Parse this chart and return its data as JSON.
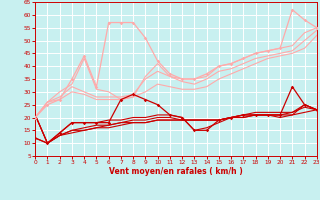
{
  "xlabel": "Vent moyen/en rafales ( km/h )",
  "xlim": [
    0,
    23
  ],
  "ylim": [
    5,
    65
  ],
  "yticks": [
    5,
    10,
    15,
    20,
    25,
    30,
    35,
    40,
    45,
    50,
    55,
    60,
    65
  ],
  "xticks": [
    0,
    1,
    2,
    3,
    4,
    5,
    6,
    7,
    8,
    9,
    10,
    11,
    12,
    13,
    14,
    15,
    16,
    17,
    18,
    19,
    20,
    21,
    22,
    23
  ],
  "bg_color": "#c8f0f0",
  "grid_color": "#ffffff",
  "series": [
    {
      "x": [
        0,
        1,
        2,
        3,
        4,
        5,
        6,
        7,
        8,
        9,
        10,
        11,
        12,
        13,
        14,
        15,
        16,
        17,
        18,
        19,
        20,
        21,
        22,
        23
      ],
      "y": [
        12,
        10,
        14,
        18,
        18,
        18,
        18,
        27,
        29,
        27,
        25,
        21,
        20,
        15,
        15,
        19,
        20,
        21,
        21,
        21,
        21,
        32,
        25,
        23
      ],
      "color": "#cc0000",
      "lw": 0.9,
      "marker": "D",
      "ms": 1.8,
      "alpha": 1.0,
      "zorder": 5
    },
    {
      "x": [
        0,
        1,
        2,
        3,
        4,
        5,
        6,
        7,
        8,
        9,
        10,
        11,
        12,
        13,
        14,
        15,
        16,
        17,
        18,
        19,
        20,
        21,
        22,
        23
      ],
      "y": [
        21,
        10,
        14,
        18,
        18,
        18,
        19,
        19,
        20,
        20,
        21,
        21,
        20,
        15,
        16,
        18,
        20,
        21,
        21,
        21,
        21,
        22,
        25,
        23
      ],
      "color": "#cc0000",
      "lw": 0.8,
      "marker": null,
      "ms": 0,
      "alpha": 1.0,
      "zorder": 4
    },
    {
      "x": [
        0,
        1,
        2,
        3,
        4,
        5,
        6,
        7,
        8,
        9,
        10,
        11,
        12,
        13,
        14,
        15,
        16,
        17,
        18,
        19,
        20,
        21,
        22,
        23
      ],
      "y": [
        21,
        10,
        13,
        15,
        16,
        17,
        17,
        18,
        19,
        19,
        20,
        20,
        19,
        19,
        19,
        19,
        20,
        21,
        22,
        22,
        22,
        22,
        24,
        23
      ],
      "color": "#cc0000",
      "lw": 0.8,
      "marker": null,
      "ms": 0,
      "alpha": 1.0,
      "zorder": 4
    },
    {
      "x": [
        0,
        1,
        2,
        3,
        4,
        5,
        6,
        7,
        8,
        9,
        10,
        11,
        12,
        13,
        14,
        15,
        16,
        17,
        18,
        19,
        20,
        21,
        22,
        23
      ],
      "y": [
        12,
        10,
        13,
        15,
        15,
        16,
        17,
        18,
        18,
        18,
        19,
        19,
        19,
        19,
        19,
        19,
        20,
        20,
        21,
        21,
        21,
        21,
        22,
        23
      ],
      "color": "#cc0000",
      "lw": 0.8,
      "marker": null,
      "ms": 0,
      "alpha": 1.0,
      "zorder": 4
    },
    {
      "x": [
        0,
        1,
        2,
        3,
        4,
        5,
        6,
        7,
        8,
        9,
        10,
        11,
        12,
        13,
        14,
        15,
        16,
        17,
        18,
        19,
        20,
        21,
        22,
        23
      ],
      "y": [
        21,
        10,
        13,
        14,
        15,
        16,
        16,
        17,
        18,
        18,
        19,
        19,
        19,
        19,
        19,
        19,
        20,
        20,
        21,
        21,
        20,
        21,
        25,
        23
      ],
      "color": "#cc0000",
      "lw": 0.8,
      "marker": null,
      "ms": 0,
      "alpha": 1.0,
      "zorder": 4
    },
    {
      "x": [
        0,
        1,
        2,
        3,
        4,
        5,
        6,
        7,
        8,
        9,
        10,
        11,
        12,
        13,
        14,
        15,
        16,
        17,
        18,
        19,
        20,
        21,
        22,
        23
      ],
      "y": [
        20,
        25,
        27,
        35,
        44,
        32,
        57,
        57,
        57,
        51,
        42,
        37,
        35,
        35,
        37,
        40,
        41,
        43,
        45,
        46,
        47,
        62,
        58,
        55
      ],
      "color": "#ffaaaa",
      "lw": 0.9,
      "marker": "D",
      "ms": 1.8,
      "alpha": 1.0,
      "zorder": 5
    },
    {
      "x": [
        0,
        1,
        2,
        3,
        4,
        5,
        6,
        7,
        8,
        9,
        10,
        11,
        12,
        13,
        14,
        15,
        16,
        17,
        18,
        19,
        20,
        21,
        22,
        23
      ],
      "y": [
        20,
        26,
        30,
        33,
        43,
        31,
        30,
        27,
        28,
        36,
        41,
        36,
        35,
        35,
        36,
        40,
        41,
        43,
        45,
        46,
        47,
        48,
        53,
        55
      ],
      "color": "#ffaaaa",
      "lw": 0.8,
      "marker": null,
      "ms": 0,
      "alpha": 1.0,
      "zorder": 4
    },
    {
      "x": [
        0,
        1,
        2,
        3,
        4,
        5,
        6,
        7,
        8,
        9,
        10,
        11,
        12,
        13,
        14,
        15,
        16,
        17,
        18,
        19,
        20,
        21,
        22,
        23
      ],
      "y": [
        20,
        26,
        28,
        32,
        30,
        28,
        28,
        28,
        29,
        35,
        38,
        36,
        34,
        33,
        35,
        38,
        39,
        41,
        43,
        44,
        45,
        46,
        50,
        54
      ],
      "color": "#ffaaaa",
      "lw": 0.8,
      "marker": null,
      "ms": 0,
      "alpha": 1.0,
      "zorder": 4
    },
    {
      "x": [
        0,
        1,
        2,
        3,
        4,
        5,
        6,
        7,
        8,
        9,
        10,
        11,
        12,
        13,
        14,
        15,
        16,
        17,
        18,
        19,
        20,
        21,
        22,
        23
      ],
      "y": [
        20,
        26,
        27,
        30,
        29,
        27,
        27,
        27,
        28,
        30,
        33,
        32,
        31,
        31,
        32,
        35,
        37,
        39,
        41,
        43,
        44,
        45,
        47,
        52
      ],
      "color": "#ffaaaa",
      "lw": 0.8,
      "marker": null,
      "ms": 0,
      "alpha": 1.0,
      "zorder": 4
    }
  ]
}
